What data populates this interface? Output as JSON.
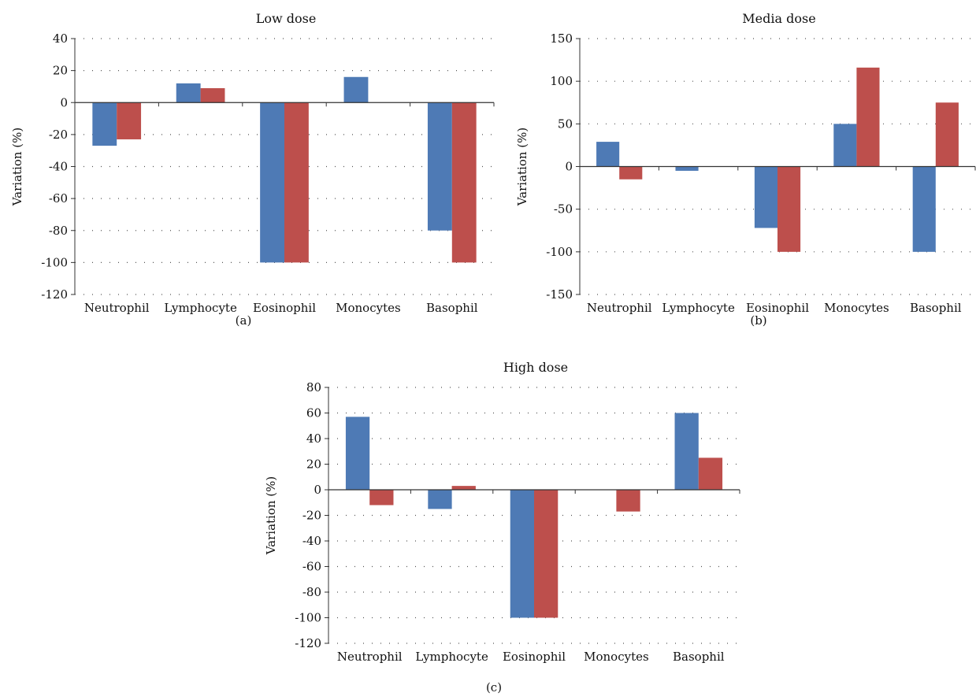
{
  "colors": {
    "series_a": "#4e7ab5",
    "series_b": "#bd4f4c",
    "grid": "#555555",
    "axis": "#333333"
  },
  "chart_data": [
    {
      "type": "bar",
      "title": "Low dose",
      "ylabel": "Variation (%)",
      "xlabel": "",
      "categories": [
        "Neutrophil",
        "Lymphocyte",
        "Eosinophil",
        "Monocytes",
        "Basophil"
      ],
      "series": [
        {
          "values": [
            -27,
            12,
            -100,
            16,
            -80
          ]
        },
        {
          "values": [
            -23,
            9,
            -100,
            0,
            -100
          ]
        }
      ],
      "ylim": [
        -120,
        40
      ],
      "yticks": [
        40,
        20,
        0,
        -20,
        -40,
        -60,
        -80,
        -100,
        -120
      ],
      "grid": "dotted horizontal",
      "caption": "(a)"
    },
    {
      "type": "bar",
      "title": "Media dose",
      "ylabel": "Variation (%)",
      "xlabel": "",
      "categories": [
        "Neutrophil",
        "Lymphocyte",
        "Eosinophil",
        "Monocytes",
        "Basophil"
      ],
      "series": [
        {
          "values": [
            29,
            -5,
            -72,
            50,
            -100
          ]
        },
        {
          "values": [
            -15,
            0,
            -100,
            116,
            75
          ]
        }
      ],
      "ylim": [
        -150,
        150
      ],
      "yticks": [
        150,
        100,
        50,
        0,
        -50,
        -100,
        -150
      ],
      "grid": "dotted horizontal",
      "caption": "(b)"
    },
    {
      "type": "bar",
      "title": "High dose",
      "ylabel": "Variation (%)",
      "xlabel": "",
      "categories": [
        "Neutrophil",
        "Lymphocyte",
        "Eosinophil",
        "Monocytes",
        "Basophil"
      ],
      "series": [
        {
          "values": [
            57,
            -15,
            -100,
            0,
            60
          ]
        },
        {
          "values": [
            -12,
            3,
            -100,
            -17,
            25
          ]
        }
      ],
      "ylim": [
        -120,
        80
      ],
      "yticks": [
        80,
        60,
        40,
        20,
        0,
        -20,
        -40,
        -60,
        -80,
        -100,
        -120
      ],
      "grid": "dotted horizontal",
      "caption": "(c)"
    }
  ]
}
